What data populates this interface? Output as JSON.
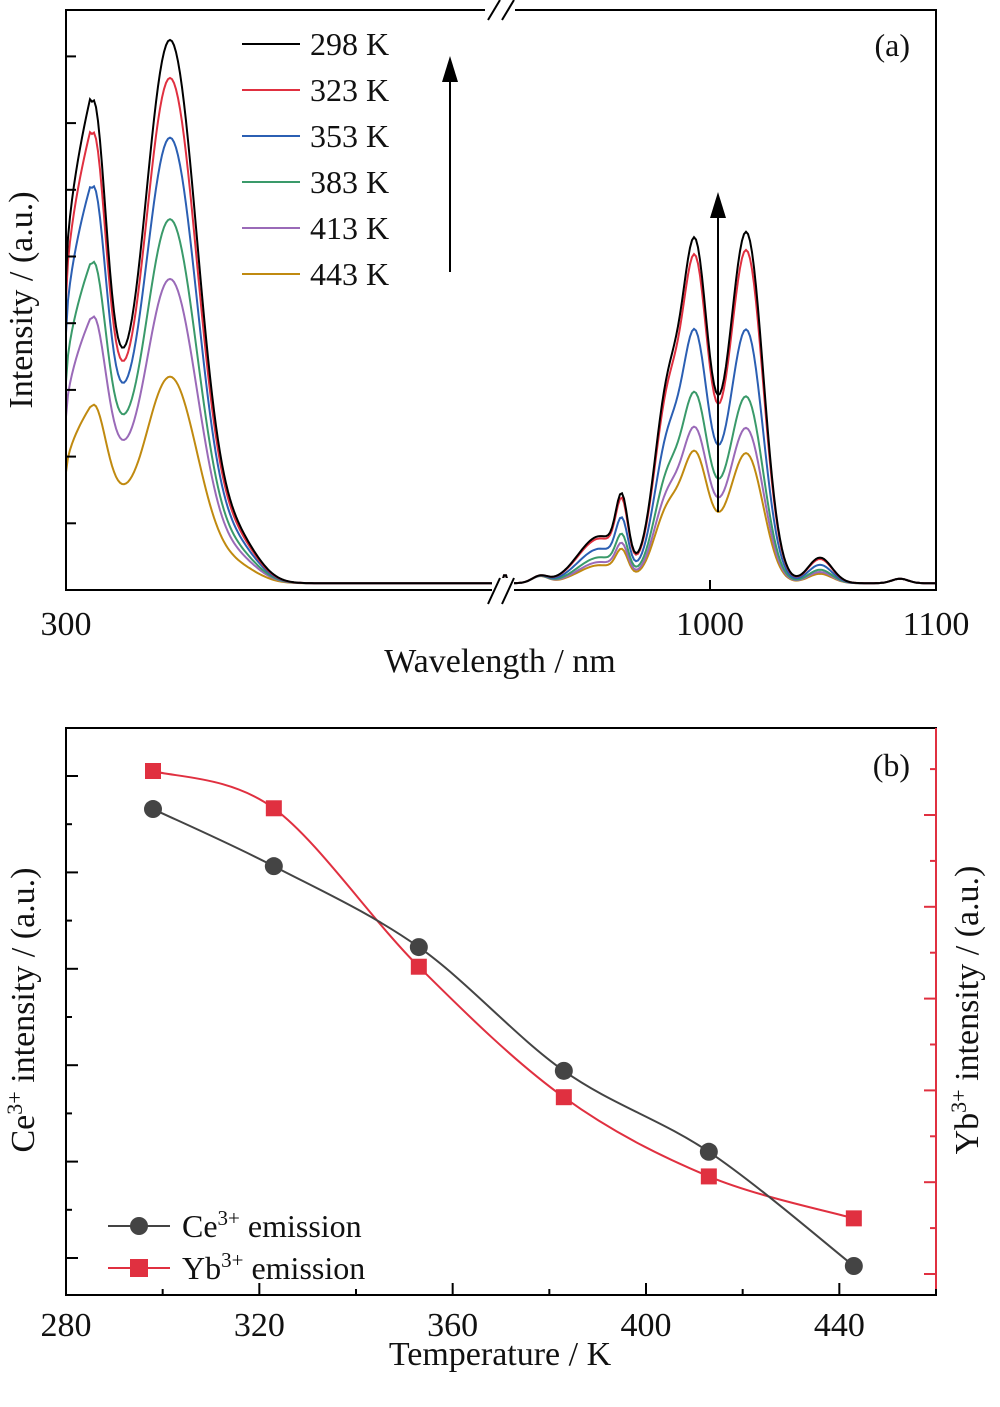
{
  "chart_data": [
    {
      "id": "a",
      "type": "line",
      "panel_label": "(a)",
      "xlabel": "Wavelength / nm",
      "ylabel": "Intensity / (a.u.)",
      "axis_break": true,
      "x_tick_labels": [
        "300",
        "1000",
        "1100"
      ],
      "legend_position": "top-center",
      "arrows": "up",
      "series": [
        {
          "name": "298 K",
          "color": "#000000",
          "ce_peak1": 0.88,
          "ce_dip": 0.48,
          "ce_peak2": 1.0,
          "yb_peak1": 0.6,
          "yb_dip": 0.47,
          "yb_peak2": 0.57
        },
        {
          "name": "323 K",
          "color": "#e03040",
          "ce_peak1": 0.82,
          "ce_dip": 0.47,
          "ce_peak2": 0.93,
          "yb_peak1": 0.57,
          "yb_dip": 0.45,
          "yb_peak2": 0.54
        },
        {
          "name": "353 K",
          "color": "#2b5fb3",
          "ce_peak1": 0.72,
          "ce_dip": 0.45,
          "ce_peak2": 0.82,
          "yb_peak1": 0.44,
          "yb_dip": 0.35,
          "yb_peak2": 0.41
        },
        {
          "name": "383 K",
          "color": "#3a9a6a",
          "ce_peak1": 0.58,
          "ce_dip": 0.41,
          "ce_peak2": 0.67,
          "yb_peak1": 0.33,
          "yb_dip": 0.27,
          "yb_peak2": 0.3
        },
        {
          "name": "413 K",
          "color": "#9a6ab8",
          "ce_peak1": 0.48,
          "ce_dip": 0.36,
          "ce_peak2": 0.56,
          "yb_peak1": 0.27,
          "yb_dip": 0.22,
          "yb_peak2": 0.25
        },
        {
          "name": "443 K",
          "color": "#c08a10",
          "ce_peak1": 0.32,
          "ce_dip": 0.26,
          "ce_peak2": 0.38,
          "yb_peak1": 0.23,
          "yb_dip": 0.18,
          "yb_peak2": 0.21
        }
      ]
    },
    {
      "id": "b",
      "type": "line",
      "panel_label": "(b)",
      "xlabel": "Temperature / K",
      "ylabel_left_base": "Ce",
      "ylabel_left_sup": "3+",
      "ylabel_left_rest": " intensity / (a.u.)",
      "ylabel_right_base": "Yb",
      "ylabel_right_sup": "3+",
      "ylabel_right_rest": " intensity / (a.u.)",
      "xlim": [
        280,
        460
      ],
      "x_ticks": [
        280,
        320,
        360,
        400,
        440
      ],
      "legend_position": "bottom-left",
      "series": [
        {
          "name_base": "Ce",
          "name_sup": "3+",
          "name_rest": " emission",
          "color": "#444444",
          "marker": "circle",
          "x": [
            298,
            323,
            353,
            383,
            413,
            443
          ],
          "y": [
            0.96,
            0.84,
            0.67,
            0.41,
            0.24,
            0.0
          ]
        },
        {
          "name_base": "Yb",
          "name_sup": "3+",
          "name_rest": " emission",
          "color": "#e03040",
          "marker": "square",
          "x": [
            298,
            323,
            353,
            383,
            413,
            443
          ],
          "y": [
            1.0,
            0.92,
            0.58,
            0.3,
            0.13,
            0.04
          ]
        }
      ]
    }
  ]
}
